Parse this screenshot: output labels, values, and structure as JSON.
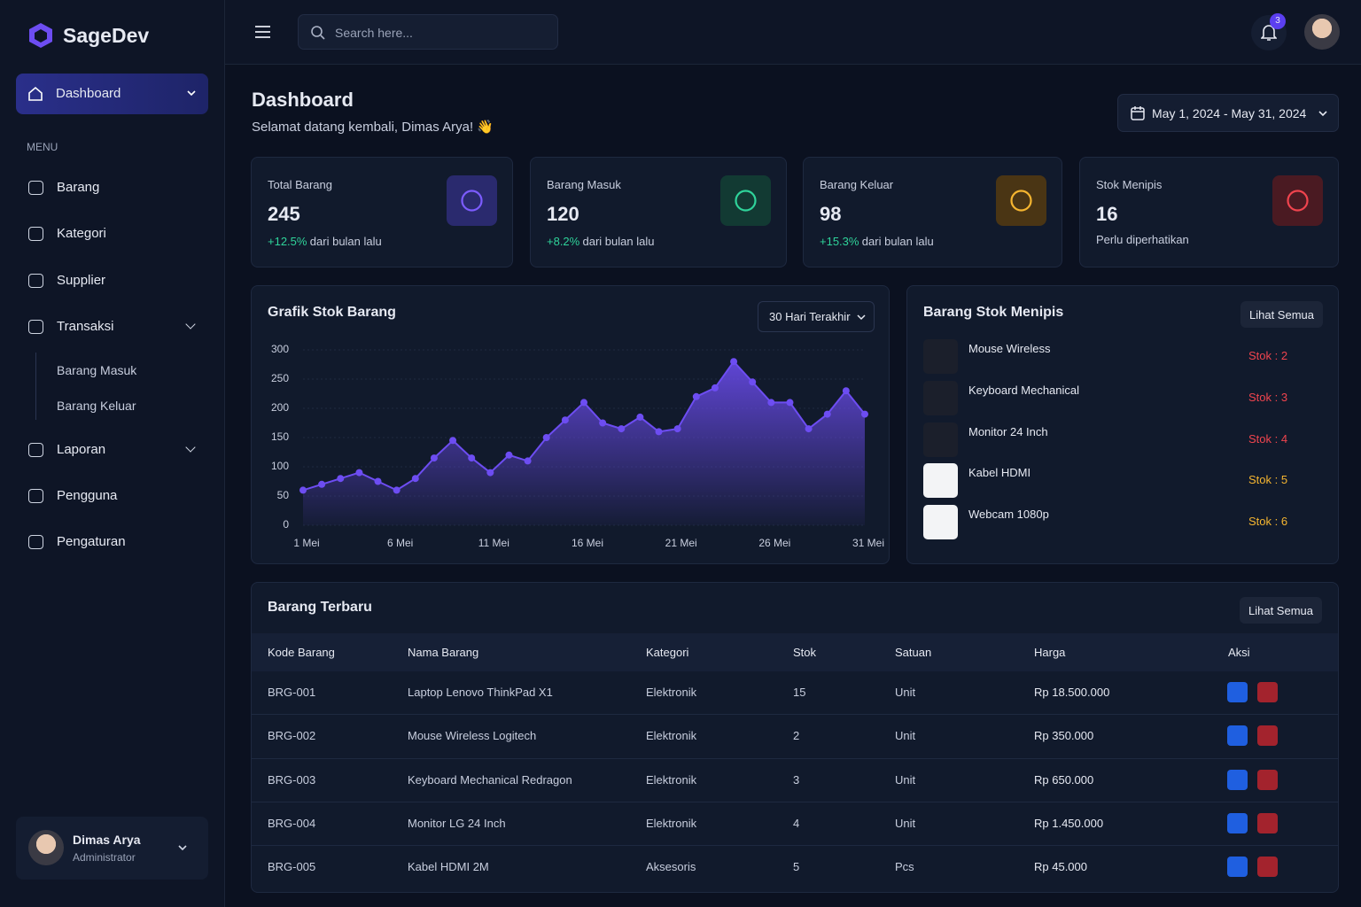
{
  "brand": "SageDev",
  "search_placeholder": "Search here...",
  "notification_count": 3,
  "sidebar": {
    "active": "Dashboard",
    "section": "MENU",
    "items": [
      "Barang",
      "Kategori",
      "Supplier",
      "Transaksi",
      "Laporan",
      "Pengguna",
      "Pengaturan"
    ],
    "transaksi_sub": [
      "Barang Masuk",
      "Barang Keluar"
    ]
  },
  "user": {
    "name": "Dimas Arya",
    "role": "Administrator"
  },
  "page": {
    "title": "Dashboard",
    "subtitle": "Selamat datang kembali, Dimas Arya! 👋",
    "date_range": "May 1, 2024 - May 31, 2024"
  },
  "stats": [
    {
      "label": "Total Barang",
      "value": 245,
      "change": "+12.5%",
      "note": "dari bulan lalu"
    },
    {
      "label": "Barang Masuk",
      "value": 120,
      "change": "+8.2%",
      "note": "dari bulan lalu"
    },
    {
      "label": "Barang Keluar",
      "value": 98,
      "change": "+15.3%",
      "note": "dari bulan lalu"
    },
    {
      "label": "Stok Menipis",
      "value": 16,
      "note": "Perlu diperhatikan"
    }
  ],
  "chart_data": {
    "type": "area",
    "title": "Grafik Stok Barang",
    "filter": "30 Hari Terakhir",
    "categories": [
      "1 Mei",
      null,
      null,
      null,
      null,
      "6 Mei",
      null,
      null,
      null,
      null,
      "11 Mei",
      null,
      null,
      null,
      null,
      "16 Mei",
      null,
      null,
      null,
      null,
      "21 Mei",
      null,
      null,
      null,
      null,
      "26 Mei",
      null,
      null,
      null,
      null,
      "31 Mei"
    ],
    "values": [
      60,
      70,
      80,
      90,
      75,
      60,
      80,
      115,
      145,
      115,
      90,
      120,
      110,
      150,
      180,
      210,
      175,
      165,
      185,
      160,
      165,
      220,
      235,
      280,
      245,
      210,
      210,
      165,
      190,
      230,
      190
    ],
    "color": "#6d4df2",
    "ylim": [
      0,
      300
    ],
    "yticks": [
      0,
      50,
      100,
      150,
      200,
      250,
      300
    ],
    "grid": true
  },
  "low_stock": {
    "title": "Barang Stok Menipis",
    "action": "Lihat Semua",
    "items": [
      {
        "name": "Mouse Wireless",
        "stock": "Stok : 2"
      },
      {
        "name": "Keyboard Mechanical",
        "stock": "Stok : 3"
      },
      {
        "name": "Monitor 24 Inch",
        "stock": "Stok : 4"
      },
      {
        "name": "Kabel HDMI",
        "stock": "Stok : 5"
      },
      {
        "name": "Webcam 1080p",
        "stock": "Stok : 6"
      }
    ]
  },
  "recent": {
    "title": "Barang Terbaru",
    "action": "Lihat Semua",
    "columns": [
      "Kode Barang",
      "Nama Barang",
      "Kategori",
      "Stok",
      "Satuan",
      "Harga",
      "Aksi"
    ],
    "rows": [
      [
        "BRG-001",
        "Laptop Lenovo ThinkPad X1",
        "Elektronik",
        15,
        "Unit",
        "Rp 18.500.000"
      ],
      [
        "BRG-002",
        "Mouse Wireless Logitech",
        "Elektronik",
        2,
        "Unit",
        "Rp 350.000"
      ],
      [
        "BRG-003",
        "Keyboard Mechanical Redragon",
        "Elektronik",
        3,
        "Unit",
        "Rp 650.000"
      ],
      [
        "BRG-004",
        "Monitor LG 24 Inch",
        "Elektronik",
        4,
        "Unit",
        "Rp 1.450.000"
      ],
      [
        "BRG-005",
        "Kabel HDMI 2M",
        "Aksesoris",
        5,
        "Pcs",
        "Rp 45.000"
      ]
    ]
  }
}
